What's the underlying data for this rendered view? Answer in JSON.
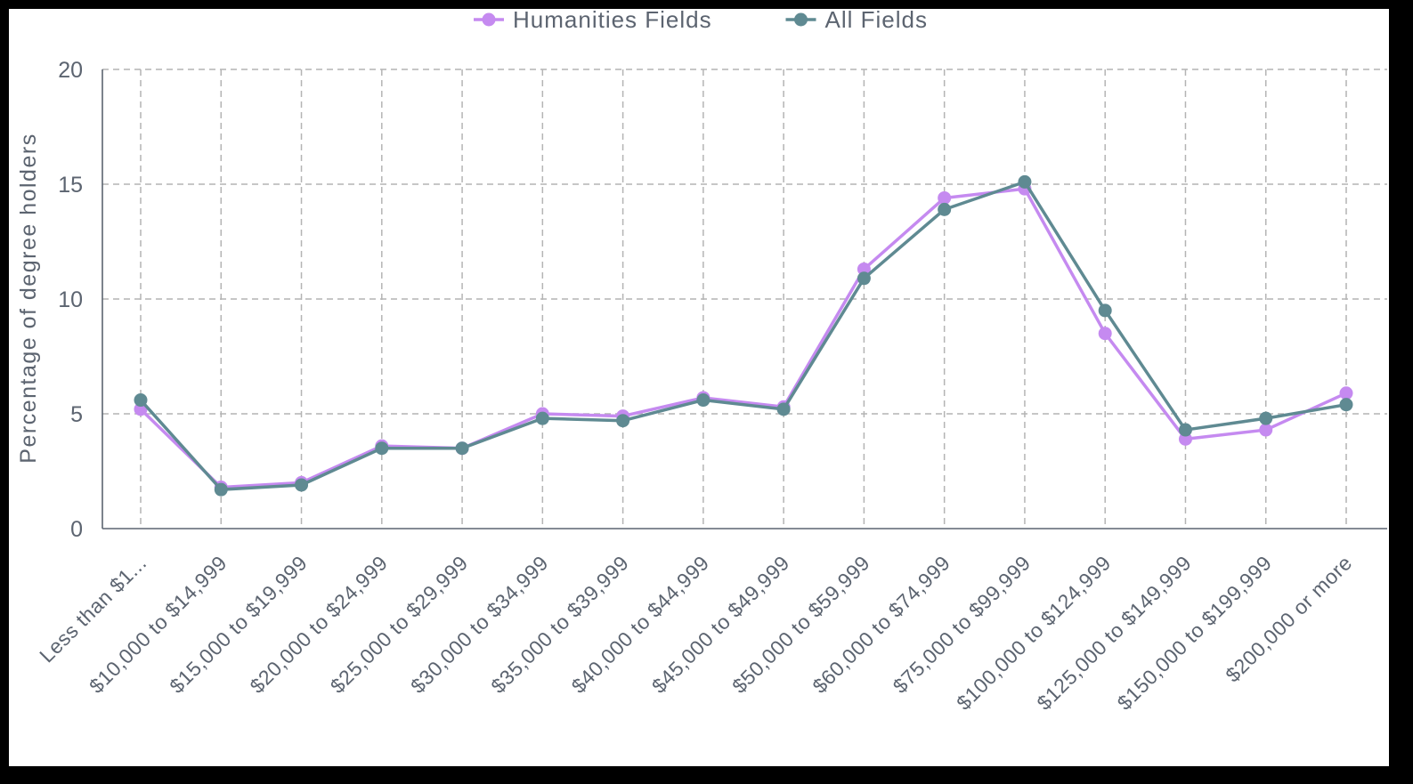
{
  "chart_data": {
    "type": "line",
    "title": "",
    "xlabel": "",
    "ylabel": "Percentage of degree holders",
    "ylim": [
      0,
      20
    ],
    "yticks": [
      0,
      5,
      10,
      15,
      20
    ],
    "grid": true,
    "legend_position": "top-center",
    "categories": [
      "Less than $1...",
      "$10,000 to $14,999",
      "$15,000 to $19,999",
      "$20,000 to $24,999",
      "$25,000 to $29,999",
      "$30,000 to $34,999",
      "$35,000 to $39,999",
      "$40,000 to $44,999",
      "$45,000 to $49,999",
      "$50,000 to $59,999",
      "$60,000 to $74,999",
      "$75,000 to $99,999",
      "$100,000 to $124,999",
      "$125,000 to $149,999",
      "$150,000 to $199,999",
      "$200,000 or more"
    ],
    "series": [
      {
        "name": "Humanities Fields",
        "color": "#c58af0",
        "values": [
          5.2,
          1.8,
          2.0,
          3.6,
          3.5,
          5.0,
          4.9,
          5.7,
          5.3,
          11.3,
          14.4,
          14.8,
          8.5,
          3.9,
          4.3,
          5.9
        ]
      },
      {
        "name": "All Fields",
        "color": "#5f8a92",
        "values": [
          5.6,
          1.7,
          1.9,
          3.5,
          3.5,
          4.8,
          4.7,
          5.6,
          5.2,
          10.9,
          13.9,
          15.1,
          9.5,
          4.3,
          4.8,
          5.4
        ]
      }
    ]
  }
}
